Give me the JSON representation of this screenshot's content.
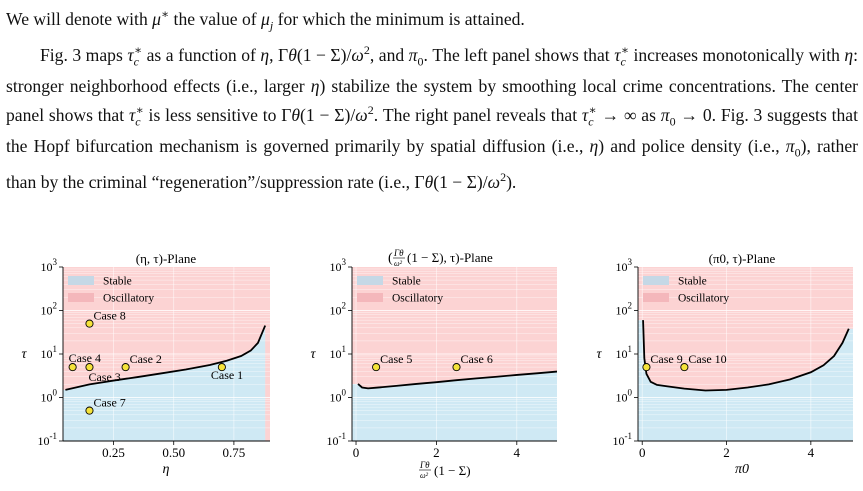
{
  "text": {
    "paragraph1": "We will denote with μ* the value of μj for which the minimum is attained.",
    "paragraph2": "Fig. 3 maps τc* as a function of η, Γθ(1 − Σ)/ω², and π0. The left panel shows that τc* increases monotonically with η: stronger neighborhood effects (i.e., larger η) stabilize the system by smoothing local crime concentrations. The center panel shows that τc* is less sensitive to Γθ(1 − Σ)/ω². The right panel reveals that τc* → ∞ as π0 → 0. Fig. 3 suggests that the Hopf bifurcation mechanism is governed primarily by spatial diffusion (i.e., η) and police density (i.e., π0), rather than by the criminal “regeneration”/suppression rate (i.e., Γθ(1 − Σ)/ω²)."
  },
  "colors": {
    "stable": "#cfe9f4",
    "oscillatory": "#fcd3d3",
    "curve": "#000000",
    "marker": "#f5e33b"
  },
  "chart_data": [
    {
      "type": "line",
      "title": "(η, τ)-Plane",
      "xlabel": "η",
      "ylabel": "τ",
      "yscale": "log",
      "xlim": [
        0.04,
        0.9
      ],
      "ylim": [
        0.1,
        1000
      ],
      "xticks": [
        "0.25",
        "0.50",
        "0.75"
      ],
      "yticks": [
        "10^-1",
        "10^0",
        "10^1",
        "10^2",
        "10^3"
      ],
      "legend": [
        "Stable",
        "Oscillatory"
      ],
      "legend_position": "top-left",
      "regions": [
        {
          "name": "Stable",
          "below_curve": true
        },
        {
          "name": "Oscillatory",
          "below_curve": false
        }
      ],
      "curve": {
        "x": [
          0.05,
          0.15,
          0.25,
          0.35,
          0.45,
          0.55,
          0.65,
          0.72,
          0.78,
          0.82,
          0.85,
          0.88
        ],
        "y": [
          1.5,
          2.0,
          2.45,
          2.95,
          3.6,
          4.4,
          5.6,
          7.0,
          9.0,
          12.0,
          18.0,
          45.0
        ]
      },
      "points": [
        {
          "label": "Case 8",
          "x": 0.15,
          "y": 50
        },
        {
          "label": "Case 4",
          "x": 0.08,
          "y": 5
        },
        {
          "label": "Case 3",
          "x": 0.15,
          "y": 5
        },
        {
          "label": "Case 2",
          "x": 0.3,
          "y": 5
        },
        {
          "label": "Case 1",
          "x": 0.7,
          "y": 5
        },
        {
          "label": "Case 7",
          "x": 0.15,
          "y": 0.5
        }
      ]
    },
    {
      "type": "line",
      "title": "(Γθ/ω² (1 − Σ), τ)-Plane",
      "xlabel": "Γθ/ω² (1 − Σ)",
      "ylabel": "τ",
      "yscale": "log",
      "xlim": [
        -0.1,
        5
      ],
      "ylim": [
        0.1,
        1000
      ],
      "xticks": [
        "0",
        "2",
        "4"
      ],
      "yticks": [
        "10^-1",
        "10^0",
        "10^1",
        "10^2",
        "10^3"
      ],
      "legend": [
        "Stable",
        "Oscillatory"
      ],
      "legend_position": "top-left",
      "regions": [
        {
          "name": "Stable",
          "below_curve": true
        },
        {
          "name": "Oscillatory",
          "below_curve": false
        }
      ],
      "curve": {
        "x": [
          0.05,
          0.15,
          0.3,
          0.5,
          1.0,
          1.5,
          2.0,
          2.5,
          3.0,
          3.5,
          4.0,
          4.5,
          5.0
        ],
        "y": [
          2.05,
          1.7,
          1.62,
          1.68,
          1.85,
          2.05,
          2.25,
          2.5,
          2.75,
          3.0,
          3.3,
          3.6,
          3.95
        ]
      },
      "points": [
        {
          "label": "Case 5",
          "x": 0.5,
          "y": 5
        },
        {
          "label": "Case 6",
          "x": 2.5,
          "y": 5
        }
      ]
    },
    {
      "type": "line",
      "title": "(π0, τ)-Plane",
      "xlabel": "π0",
      "ylabel": "τ",
      "yscale": "log",
      "xlim": [
        -0.1,
        5
      ],
      "ylim": [
        0.1,
        1000
      ],
      "xticks": [
        "0",
        "2",
        "4"
      ],
      "yticks": [
        "10^-1",
        "10^0",
        "10^1",
        "10^2",
        "10^3"
      ],
      "legend": [
        "Stable",
        "Oscillatory"
      ],
      "legend_position": "top-left",
      "regions": [
        {
          "name": "Stable",
          "below_curve": true
        },
        {
          "name": "Oscillatory",
          "below_curve": false
        }
      ],
      "curve": {
        "x": [
          0.02,
          0.05,
          0.1,
          0.2,
          0.35,
          0.6,
          1.0,
          1.5,
          2.0,
          2.5,
          3.0,
          3.5,
          4.0,
          4.3,
          4.55,
          4.75,
          4.9
        ],
        "y": [
          60,
          8,
          3.5,
          2.3,
          1.95,
          1.8,
          1.6,
          1.45,
          1.5,
          1.7,
          2.0,
          2.6,
          3.8,
          5.5,
          9,
          18,
          38
        ]
      },
      "points": [
        {
          "label": "Case 9",
          "x": 0.1,
          "y": 5
        },
        {
          "label": "Case 10",
          "x": 1.0,
          "y": 5
        }
      ]
    }
  ]
}
